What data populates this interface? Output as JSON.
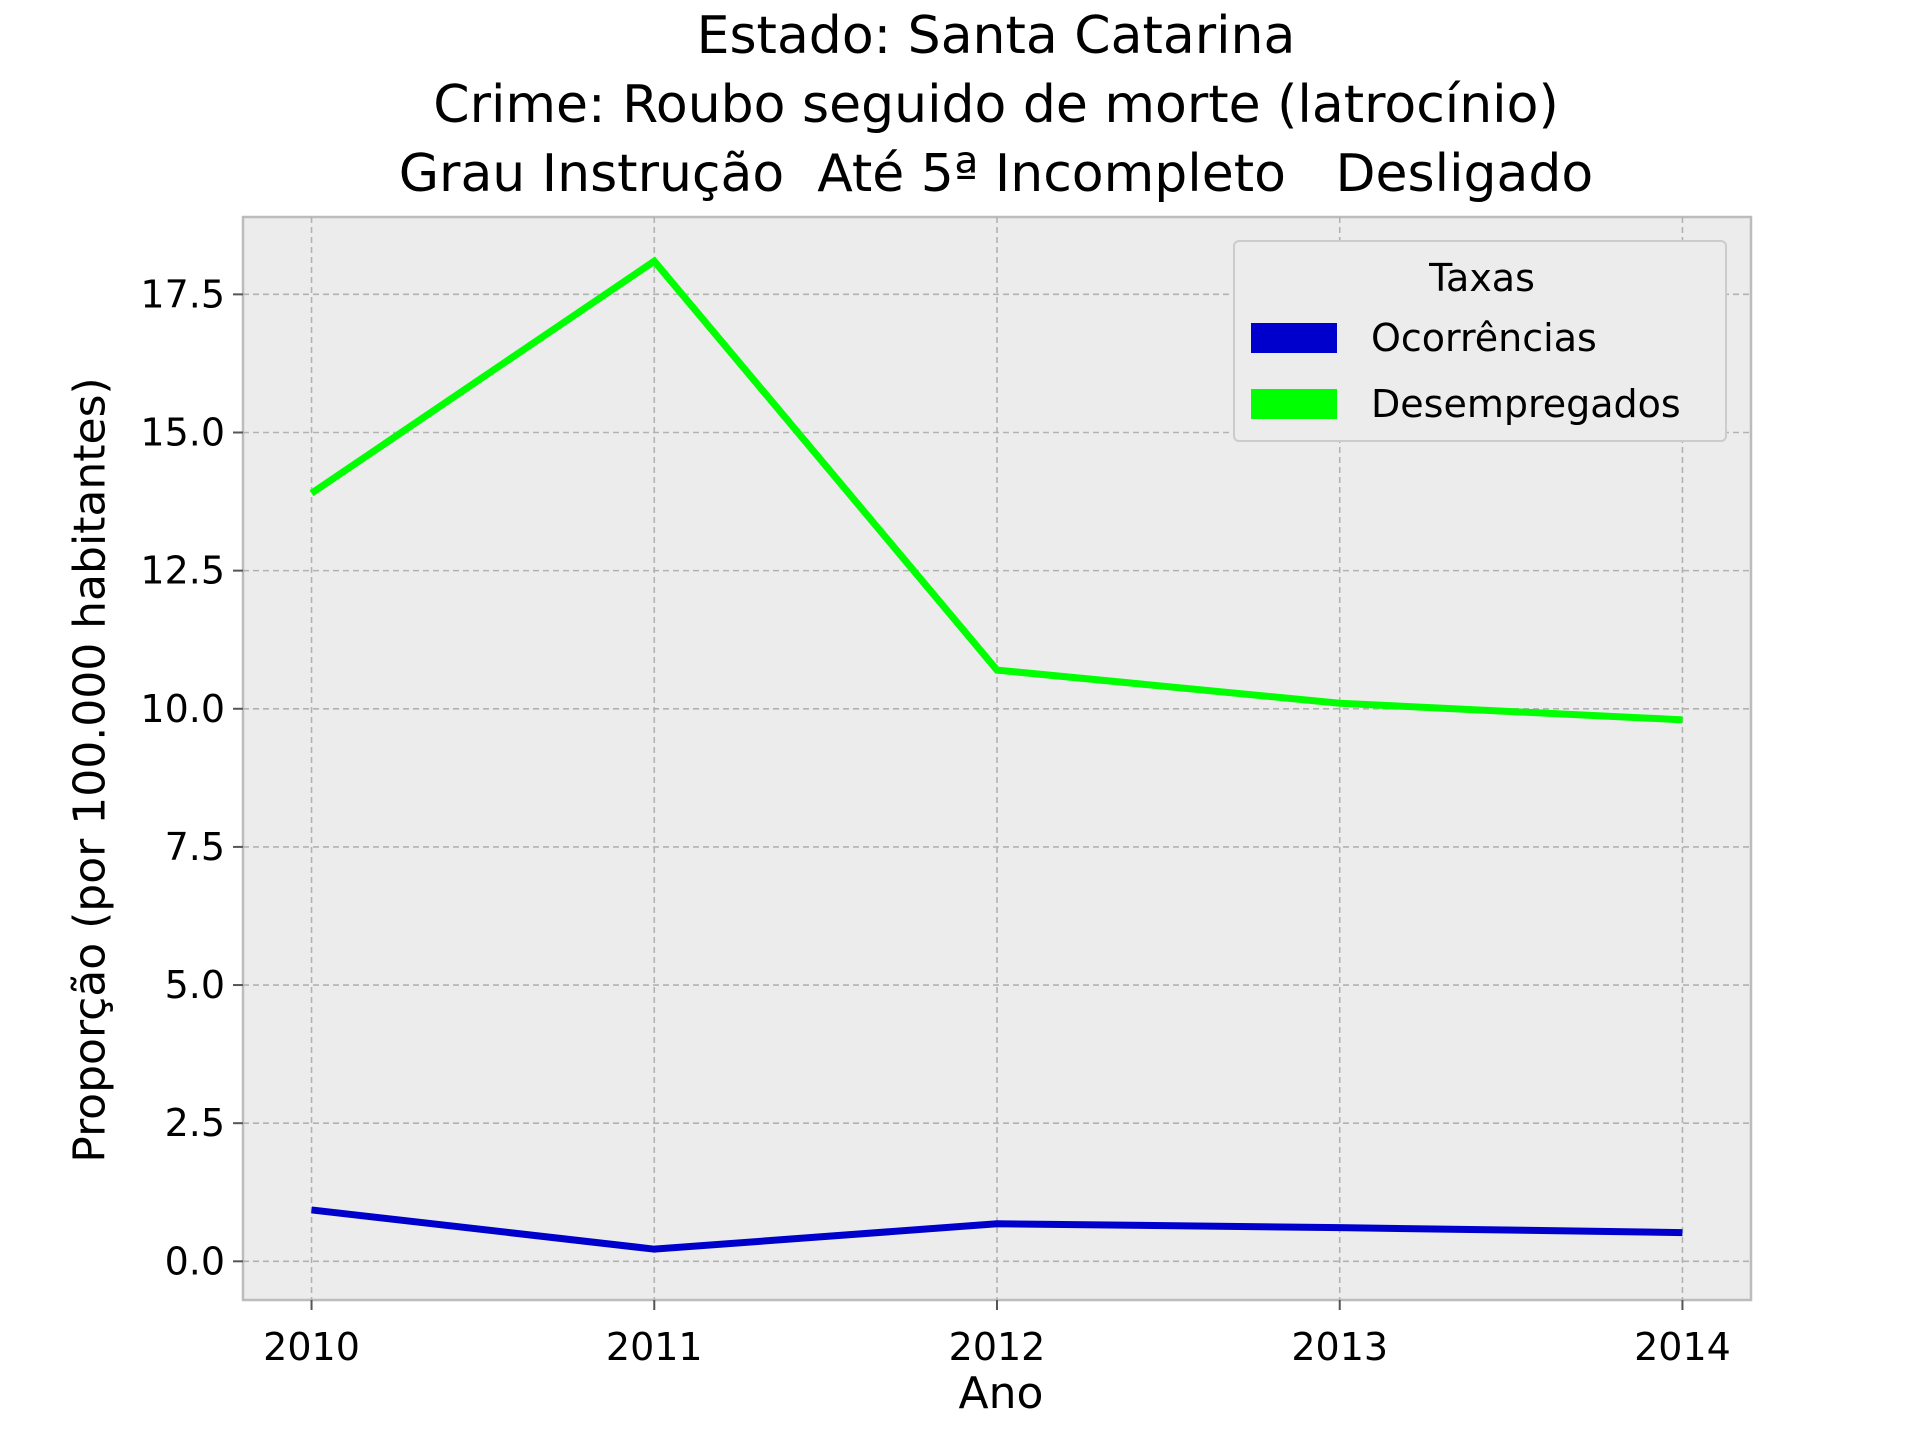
{
  "chart_data": {
    "type": "line",
    "title_lines": [
      "Estado: Santa Catarina",
      "Crime: Roubo seguido de morte (latrocínio)",
      "Grau Instrução  Até 5ª Incompleto   Desligado"
    ],
    "xlabel": "Ano",
    "ylabel": "Proporção (por 100.000 habitantes)",
    "x": [
      2010,
      2011,
      2012,
      2013,
      2014
    ],
    "x_tick_labels": [
      "2010",
      "2011",
      "2012",
      "2013",
      "2014"
    ],
    "y_ticks": [
      0.0,
      2.5,
      5.0,
      7.5,
      10.0,
      12.5,
      15.0,
      17.5
    ],
    "y_tick_labels": [
      "0.0",
      "2.5",
      "5.0",
      "7.5",
      "10.0",
      "12.5",
      "15.0",
      "17.5"
    ],
    "xlim": [
      2009.8,
      2014.2
    ],
    "ylim": [
      -0.7,
      18.9
    ],
    "grid": true,
    "legend": {
      "title": "Taxas",
      "placement": "top-right"
    },
    "series": [
      {
        "name": "Ocorrências",
        "color": "#0000cc",
        "values": [
          0.93,
          0.22,
          0.68,
          0.61,
          0.52
        ]
      },
      {
        "name": "Desempregados",
        "color": "#00ff00",
        "values": [
          13.9,
          18.1,
          10.7,
          10.1,
          9.8
        ]
      }
    ]
  }
}
